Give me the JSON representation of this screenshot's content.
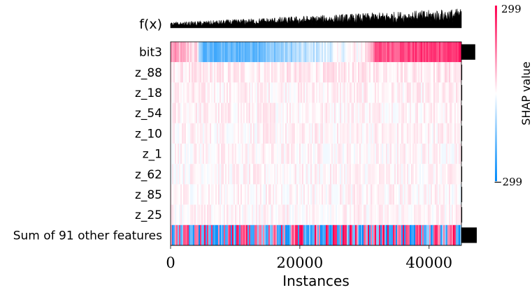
{
  "chart_data": {
    "type": "heatmap",
    "title": "",
    "xlabel": "Instances",
    "ylabel": "",
    "x_range": [
      0,
      45000
    ],
    "x_ticks": [
      "0",
      "20000",
      "40000"
    ],
    "x_tick_values": [
      0,
      20000,
      40000
    ],
    "output_label": "f(x)",
    "features": [
      {
        "name": "bit3",
        "importance": 0.9,
        "pattern": [
          {
            "x": 0,
            "value": 120
          },
          {
            "x": 4000,
            "value": 40
          },
          {
            "x": 5000,
            "value": -200
          },
          {
            "x": 12000,
            "value": -180
          },
          {
            "x": 20000,
            "value": -90
          },
          {
            "x": 26000,
            "value": -20
          },
          {
            "x": 30000,
            "value": 20
          },
          {
            "x": 32000,
            "value": 200
          },
          {
            "x": 45000,
            "value": 240
          }
        ]
      },
      {
        "name": "z_88",
        "importance": 0.05,
        "pattern": [
          {
            "x": 0,
            "value": 20
          },
          {
            "x": 45000,
            "value": 30
          }
        ]
      },
      {
        "name": "z_18",
        "importance": 0.05,
        "pattern": [
          {
            "x": 0,
            "value": 15
          },
          {
            "x": 45000,
            "value": 15
          }
        ]
      },
      {
        "name": "z_54",
        "importance": 0.05,
        "pattern": [
          {
            "x": 0,
            "value": 15
          },
          {
            "x": 45000,
            "value": 15
          }
        ]
      },
      {
        "name": "z_10",
        "importance": 0.05,
        "pattern": [
          {
            "x": 0,
            "value": 10
          },
          {
            "x": 45000,
            "value": 15
          }
        ]
      },
      {
        "name": "z_1",
        "importance": 0.05,
        "pattern": [
          {
            "x": 0,
            "value": 10
          },
          {
            "x": 45000,
            "value": 10
          }
        ]
      },
      {
        "name": "z_62",
        "importance": 0.05,
        "pattern": [
          {
            "x": 0,
            "value": 10
          },
          {
            "x": 45000,
            "value": 10
          }
        ]
      },
      {
        "name": "z_85",
        "importance": 0.05,
        "pattern": [
          {
            "x": 0,
            "value": 10
          },
          {
            "x": 45000,
            "value": 10
          }
        ]
      },
      {
        "name": "z_25",
        "importance": 0.05,
        "pattern": [
          {
            "x": 0,
            "value": 10
          },
          {
            "x": 45000,
            "value": 10
          }
        ]
      },
      {
        "name": "Sum of 91 other features",
        "importance": 1.0,
        "pattern": [
          {
            "x": 0,
            "value": 0
          },
          {
            "x": 45000,
            "value": 0
          }
        ]
      }
    ],
    "colorbar": {
      "label": "SHAP value",
      "min_label": "−299",
      "max_label": "299",
      "min": -299,
      "max": 299,
      "min_color": "#008bfb",
      "mid_color": "#ffffff",
      "max_color": "#ff0051"
    },
    "grid": false
  }
}
